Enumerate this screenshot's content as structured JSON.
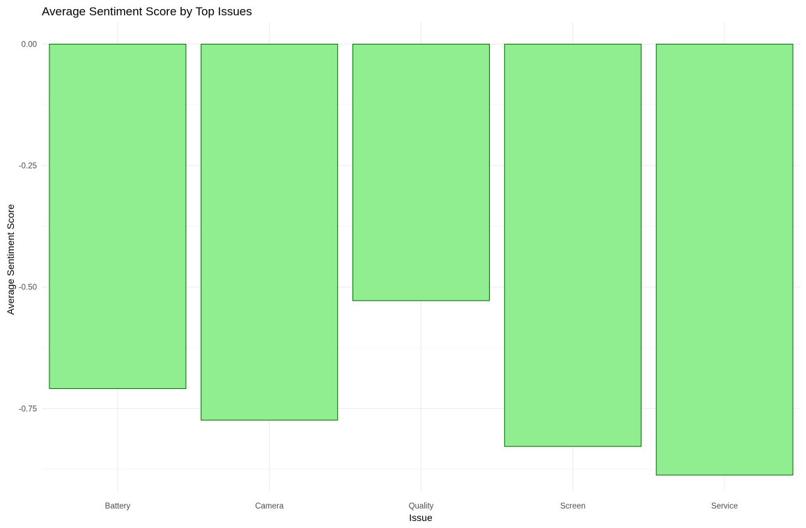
{
  "chart_data": {
    "type": "bar",
    "title": "Average Sentiment Score by Top Issues",
    "xlabel": "Issue",
    "ylabel": "Average Sentiment Score",
    "categories": [
      "Battery",
      "Camera",
      "Quality",
      "Screen",
      "Service"
    ],
    "values": [
      -0.709,
      -0.774,
      -0.528,
      -0.828,
      -0.887
    ],
    "ylim": [
      -0.92,
      0.045
    ],
    "yticks": [
      0,
      -0.25,
      -0.5,
      -0.75
    ],
    "ytick_labels": [
      "0.00",
      "-0.25",
      "-0.50",
      "-0.75"
    ],
    "grid": true,
    "legend": false,
    "colors": {
      "bar_fill": "#90ee90",
      "bar_outline": "#006400",
      "grid": "#ebebeb"
    }
  }
}
